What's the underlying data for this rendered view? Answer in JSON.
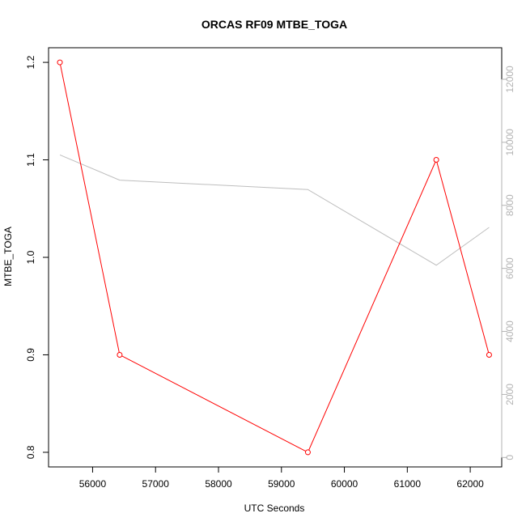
{
  "chart_data": {
    "type": "line",
    "title": "ORCAS RF09 MTBE_TOGA",
    "xlabel": "UTC Seconds",
    "ylabel": "MTBE_TOGA",
    "xlim": [
      55300,
      62500
    ],
    "ylim": [
      0.785,
      1.215
    ],
    "y2lim": [
      -300,
      13000
    ],
    "x_ticks": [
      56000,
      57000,
      58000,
      59000,
      60000,
      61000,
      62000
    ],
    "y_ticks": [
      0.8,
      0.9,
      1.0,
      1.1,
      1.2
    ],
    "y_tick_labels": [
      "0.8",
      "0.9",
      "1.0",
      "1.1",
      "1.2"
    ],
    "y2_ticks": [
      0,
      2000,
      4000,
      6000,
      8000,
      10000,
      12000
    ],
    "grid": false,
    "series": [
      {
        "axis": "left",
        "color": "#ff0000",
        "markers": "open-circle",
        "x": [
          55480,
          56430,
          59420,
          61460,
          62300
        ],
        "y": [
          1.2,
          0.9,
          0.8,
          1.1,
          0.9
        ]
      },
      {
        "axis": "right",
        "color": "#bebebe",
        "markers": "none",
        "x": [
          55480,
          56430,
          59420,
          61460,
          62300
        ],
        "y": [
          9600,
          8800,
          8500,
          6100,
          7300
        ]
      }
    ]
  }
}
